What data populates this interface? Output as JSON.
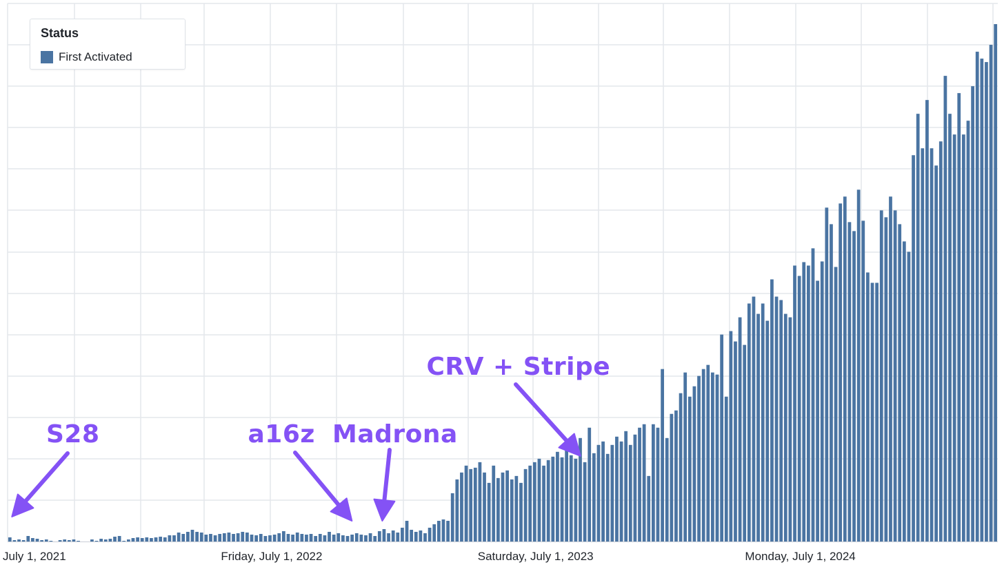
{
  "chart_data": {
    "type": "bar",
    "title": "",
    "xlabel": "",
    "ylabel": "",
    "x_start": "2021-07-01",
    "x_end": "2025-03-31",
    "bar_interval": "week",
    "x_tick_labels": [
      "July 1, 2021",
      "Friday, July 1, 2022",
      "Saturday, July 1, 2023",
      "Monday, July 1, 2024"
    ],
    "x_tick_dates": [
      "2021-07-01",
      "2022-07-01",
      "2023-07-01",
      "2024-07-01"
    ],
    "y_tick_labels": [],
    "ylim": [
      0,
      750
    ],
    "grid": true,
    "legend": {
      "title": "Status",
      "position": "top-left"
    },
    "series": [
      {
        "name": "First Activated",
        "color": "#4a74a2",
        "values": [
          6,
          2,
          3,
          2,
          8,
          5,
          4,
          2,
          3,
          1,
          0,
          2,
          3,
          2,
          3,
          1,
          0,
          0,
          3,
          1,
          4,
          3,
          4,
          7,
          8,
          1,
          3,
          5,
          6,
          5,
          6,
          5,
          6,
          7,
          6,
          9,
          9,
          13,
          11,
          14,
          17,
          14,
          13,
          10,
          11,
          9,
          11,
          12,
          13,
          11,
          12,
          14,
          13,
          10,
          9,
          11,
          8,
          9,
          10,
          12,
          15,
          11,
          10,
          13,
          11,
          10,
          11,
          8,
          11,
          9,
          14,
          10,
          12,
          9,
          8,
          10,
          12,
          10,
          9,
          12,
          8,
          15,
          18,
          12,
          16,
          13,
          20,
          30,
          17,
          14,
          16,
          12,
          20,
          25,
          30,
          32,
          30,
          70,
          90,
          100,
          110,
          105,
          107,
          115,
          100,
          85,
          110,
          92,
          100,
          103,
          90,
          95,
          85,
          105,
          110,
          115,
          120,
          110,
          118,
          123,
          130,
          122,
          135,
          125,
          120,
          150,
          115,
          165,
          128,
          140,
          145,
          127,
          140,
          152,
          145,
          160,
          140,
          155,
          165,
          170,
          95,
          170,
          165,
          250,
          150,
          185,
          190,
          215,
          245,
          210,
          225,
          240,
          250,
          256,
          245,
          242,
          300,
          210,
          305,
          290,
          325,
          285,
          345,
          355,
          330,
          345,
          320,
          380,
          355,
          350,
          330,
          325,
          400,
          385,
          405,
          400,
          425,
          378,
          406,
          484,
          460,
          398,
          490,
          500,
          463,
          450,
          510,
          465,
          390,
          375,
          375,
          480,
          470,
          500,
          480,
          460,
          435,
          420,
          560,
          620,
          570,
          640,
          570,
          545,
          580,
          675,
          620,
          590,
          650,
          590,
          610,
          660,
          710,
          700,
          695,
          720,
          750
        ]
      }
    ],
    "annotations": [
      {
        "text": "S28",
        "date": "2021-07-07",
        "value": 30
      },
      {
        "text": "a16z",
        "date": "2022-10-20",
        "value": 22
      },
      {
        "text": "Madrona",
        "date": "2022-12-01",
        "value": 18
      },
      {
        "text": "CRV + Stripe",
        "date": "2023-09-01",
        "value": 118
      }
    ]
  },
  "annotation_color": "#8452f5",
  "grid_color": "#e4e7ec"
}
